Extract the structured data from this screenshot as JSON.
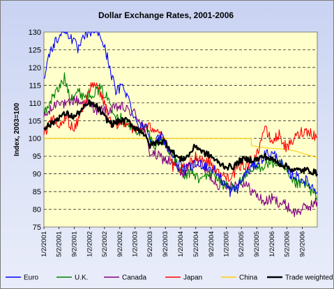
{
  "chart_data": {
    "type": "line",
    "title": "Dollar Exchange Rates, 2001-2006",
    "xlabel": "",
    "ylabel": "Index, 2003=100",
    "ylim": [
      75,
      130
    ],
    "yticks": [
      75,
      80,
      85,
      90,
      95,
      100,
      105,
      110,
      115,
      120,
      125,
      130
    ],
    "xlim": [
      "2001-01-02",
      "2006-12-31"
    ],
    "xticks": [
      "1/2/2001",
      "5/2/2001",
      "9/2/2001",
      "1/2/2002",
      "5/2/2002",
      "9/2/2002",
      "1/2/2003",
      "5/2/2003",
      "9/2/2003",
      "1/2/2004",
      "5/2/2004",
      "9/2/2004",
      "1/2/2005",
      "5/2/2005",
      "9/2/2005",
      "1/2/2006",
      "5/2/2006",
      "9/2/2006"
    ],
    "grid": "horizontal-dashed",
    "legend_position": "bottom",
    "colors": {
      "plot_bg": "#ffffcc",
      "grid": "#000000",
      "euro": "#0000ff",
      "uk": "#008000",
      "canada": "#800080",
      "japan": "#ff0000",
      "china": "#ffcc00",
      "trade": "#000000"
    },
    "series": [
      {
        "name": "Euro",
        "key": "euro",
        "x": [
          "2001-01-02",
          "2001-02-15",
          "2001-04-01",
          "2001-06-01",
          "2001-08-01",
          "2001-10-01",
          "2001-12-01",
          "2002-02-01",
          "2002-04-01",
          "2002-06-01",
          "2002-08-01",
          "2002-10-01",
          "2002-12-01",
          "2003-02-01",
          "2003-04-01",
          "2003-06-01",
          "2003-08-01",
          "2003-10-01",
          "2003-12-01",
          "2004-02-01",
          "2004-04-01",
          "2004-06-01",
          "2004-08-01",
          "2004-10-01",
          "2004-12-01",
          "2005-02-01",
          "2005-04-01",
          "2005-06-01",
          "2005-08-01",
          "2005-10-01",
          "2005-12-01",
          "2006-02-01",
          "2006-04-01",
          "2006-06-01",
          "2006-08-01",
          "2006-10-01",
          "2006-12-31"
        ],
        "values": [
          117,
          124,
          127,
          131,
          129,
          125,
          129,
          131,
          129,
          122,
          113,
          115,
          109,
          103,
          104,
          98,
          101,
          97,
          93,
          91,
          92,
          93,
          92,
          91,
          88,
          85,
          86,
          90,
          92,
          94,
          96,
          95,
          92,
          90,
          89,
          88,
          85
        ]
      },
      {
        "name": "U.K.",
        "key": "uk",
        "x": [
          "2001-01-02",
          "2001-03-01",
          "2001-05-01",
          "2001-06-15",
          "2001-08-01",
          "2001-10-01",
          "2001-12-01",
          "2002-02-01",
          "2002-04-01",
          "2002-06-01",
          "2002-08-01",
          "2002-10-01",
          "2002-12-01",
          "2003-02-01",
          "2003-04-01",
          "2003-06-01",
          "2003-08-01",
          "2003-10-01",
          "2003-12-01",
          "2004-02-01",
          "2004-04-01",
          "2004-06-01",
          "2004-08-01",
          "2004-10-01",
          "2004-12-01",
          "2005-02-01",
          "2005-04-01",
          "2005-06-01",
          "2005-08-01",
          "2005-10-01",
          "2005-12-01",
          "2006-02-01",
          "2006-04-01",
          "2006-06-01",
          "2006-08-01",
          "2006-10-01",
          "2006-12-31"
        ],
        "values": [
          107,
          111,
          114,
          117,
          112,
          113,
          112,
          113,
          114,
          111,
          107,
          105,
          103,
          102,
          103,
          98,
          100,
          97,
          93,
          89,
          91,
          88,
          90,
          90,
          87,
          86,
          87,
          89,
          91,
          92,
          93,
          93,
          92,
          88,
          87,
          87,
          83
        ]
      },
      {
        "name": "Canada",
        "key": "canada",
        "x": [
          "2001-01-02",
          "2001-03-01",
          "2001-05-01",
          "2001-07-01",
          "2001-09-01",
          "2001-11-01",
          "2002-01-01",
          "2002-03-01",
          "2002-05-01",
          "2002-07-01",
          "2002-09-01",
          "2002-11-01",
          "2003-01-01",
          "2003-03-01",
          "2003-05-01",
          "2003-07-01",
          "2003-09-01",
          "2003-11-01",
          "2004-01-01",
          "2004-03-01",
          "2004-05-01",
          "2004-07-01",
          "2004-09-01",
          "2004-11-01",
          "2005-01-01",
          "2005-03-01",
          "2005-05-01",
          "2005-07-01",
          "2005-09-01",
          "2005-11-01",
          "2006-01-01",
          "2006-03-01",
          "2006-05-01",
          "2006-07-01",
          "2006-09-01",
          "2006-11-01",
          "2006-12-31"
        ],
        "values": [
          106,
          108,
          111,
          109,
          111,
          110,
          110,
          108,
          108,
          108,
          109,
          108,
          107,
          104,
          96,
          95,
          94,
          93,
          90,
          91,
          94,
          92,
          89,
          87,
          87,
          87,
          88,
          86,
          84,
          82,
          83,
          82,
          81,
          79,
          80,
          81,
          82
        ]
      },
      {
        "name": "Japan",
        "key": "japan",
        "x": [
          "2001-01-02",
          "2001-03-01",
          "2001-05-01",
          "2001-07-01",
          "2001-09-01",
          "2001-11-01",
          "2002-01-01",
          "2002-03-01",
          "2002-05-01",
          "2002-07-01",
          "2002-09-01",
          "2002-11-01",
          "2003-01-01",
          "2003-03-01",
          "2003-05-01",
          "2003-07-01",
          "2003-09-01",
          "2003-11-01",
          "2004-01-01",
          "2004-03-01",
          "2004-05-01",
          "2004-07-01",
          "2004-09-01",
          "2004-11-01",
          "2005-01-01",
          "2005-03-01",
          "2005-05-01",
          "2005-07-01",
          "2005-09-01",
          "2005-11-01",
          "2006-01-01",
          "2006-03-01",
          "2006-05-01",
          "2006-07-01",
          "2006-09-01",
          "2006-11-01",
          "2006-12-31"
        ],
        "values": [
          101,
          106,
          103,
          106,
          102,
          108,
          114,
          115,
          110,
          103,
          104,
          105,
          102,
          103,
          103,
          103,
          99,
          92,
          91,
          92,
          95,
          94,
          93,
          90,
          89,
          90,
          92,
          93,
          95,
          103,
          99,
          101,
          97,
          100,
          102,
          102,
          100
        ]
      },
      {
        "name": "China",
        "key": "china",
        "x": [
          "2001-01-02",
          "2005-07-20",
          "2005-07-21",
          "2005-10-01",
          "2006-01-01",
          "2006-04-01",
          "2006-07-01",
          "2006-10-01",
          "2006-12-31"
        ],
        "values": [
          100,
          100,
          98,
          97.5,
          97.2,
          97,
          96.5,
          95.5,
          94.6
        ]
      },
      {
        "name": "Trade weighted",
        "key": "trade",
        "x": [
          "2001-01-02",
          "2001-03-01",
          "2001-05-01",
          "2001-07-01",
          "2001-09-01",
          "2001-11-01",
          "2002-01-01",
          "2002-03-01",
          "2002-05-01",
          "2002-07-01",
          "2002-09-01",
          "2002-11-01",
          "2003-01-01",
          "2003-03-01",
          "2003-05-01",
          "2003-07-01",
          "2003-09-01",
          "2003-11-01",
          "2004-01-01",
          "2004-03-01",
          "2004-05-01",
          "2004-07-01",
          "2004-09-01",
          "2004-11-01",
          "2005-01-01",
          "2005-03-01",
          "2005-05-01",
          "2005-07-01",
          "2005-09-01",
          "2005-11-01",
          "2006-01-01",
          "2006-03-01",
          "2006-05-01",
          "2006-07-01",
          "2006-09-01",
          "2006-11-01",
          "2006-12-31"
        ],
        "values": [
          103,
          104,
          106,
          107,
          106,
          108,
          110,
          109,
          106,
          104,
          105,
          105,
          103,
          102,
          98,
          99,
          99,
          96,
          94,
          95,
          98,
          96,
          95,
          93,
          92,
          92,
          94,
          94,
          94,
          95,
          94,
          93,
          92,
          91,
          91,
          91,
          90
        ]
      }
    ]
  }
}
